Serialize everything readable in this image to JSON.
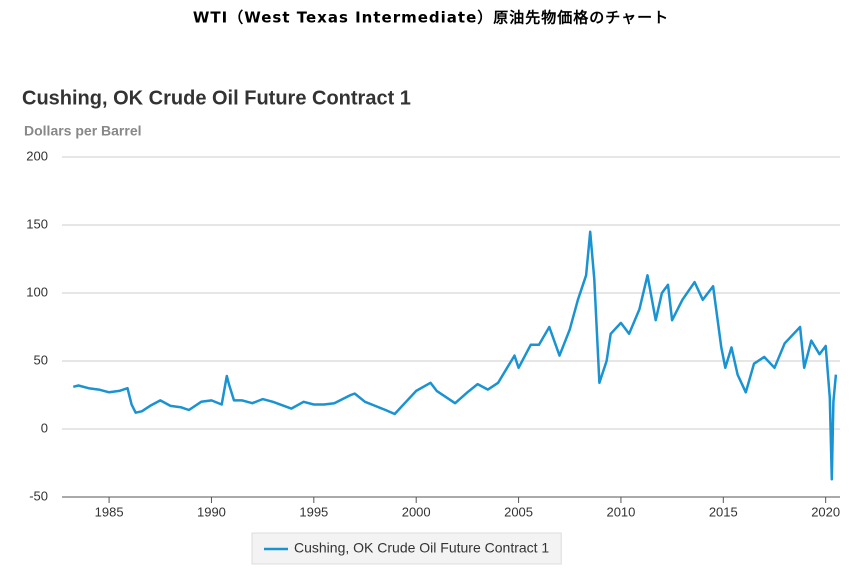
{
  "caption": "WTI（West Texas Intermediate）原油先物価格のチャート",
  "chart_data": {
    "type": "line",
    "title": "Cushing, OK Crude Oil Future Contract 1",
    "y_label": "Dollars per Barrel",
    "x": [
      1983.25,
      1983.5,
      1984,
      1984.5,
      1985,
      1985.5,
      1985.9,
      1986.1,
      1986.3,
      1986.6,
      1987,
      1987.5,
      1988,
      1988.5,
      1988.9,
      1989.5,
      1990,
      1990.5,
      1990.75,
      1990.85,
      1991.1,
      1991.5,
      1992,
      1992.5,
      1993,
      1993.9,
      1994.5,
      1995,
      1995.5,
      1996,
      1996.8,
      1997,
      1997.5,
      1998,
      1998.5,
      1998.95,
      1999.5,
      2000,
      2000.7,
      2001,
      2001.9,
      2002.5,
      2003,
      2003.5,
      2004,
      2004.8,
      2005,
      2005.6,
      2006,
      2006.5,
      2007,
      2007.5,
      2007.9,
      2008.3,
      2008.5,
      2008.7,
      2008.95,
      2009.3,
      2009.5,
      2010,
      2010.4,
      2010.9,
      2011.3,
      2011.7,
      2012,
      2012.3,
      2012.5,
      2013,
      2013.6,
      2014,
      2014.5,
      2014.9,
      2015.1,
      2015.4,
      2015.7,
      2016.1,
      2016.5,
      2017,
      2017.5,
      2018,
      2018.75,
      2018.95,
      2019.3,
      2019.7,
      2020,
      2020.2,
      2020.3,
      2020.38,
      2020.5
    ],
    "series": [
      {
        "name": "Cushing, OK Crude Oil Future Contract 1",
        "color": "#1a93d3",
        "values": [
          31,
          32,
          30,
          29,
          27,
          28,
          30,
          18,
          12,
          13,
          17,
          21,
          17,
          16,
          14,
          20,
          21,
          18,
          39,
          33,
          21,
          21,
          19,
          22,
          20,
          15,
          20,
          18,
          18,
          19,
          25,
          26,
          20,
          17,
          14,
          11,
          20,
          28,
          34,
          28,
          19,
          27,
          33,
          29,
          34,
          54,
          45,
          62,
          62,
          75,
          54,
          73,
          95,
          113,
          145,
          110,
          34,
          50,
          70,
          78,
          70,
          88,
          113,
          80,
          100,
          106,
          80,
          95,
          108,
          95,
          105,
          60,
          45,
          60,
          40,
          27,
          48,
          53,
          45,
          63,
          75,
          45,
          65,
          55,
          61,
          23,
          -37,
          20,
          40
        ]
      }
    ],
    "xlim": [
      1982.7,
      2020.7
    ],
    "xticks": [
      1985,
      1990,
      1995,
      2000,
      2005,
      2010,
      2015,
      2020
    ],
    "ylim": [
      -50,
      200
    ],
    "yticks": [
      -50,
      0,
      50,
      100,
      150,
      200
    ],
    "grid": true,
    "legend": "bottom"
  }
}
